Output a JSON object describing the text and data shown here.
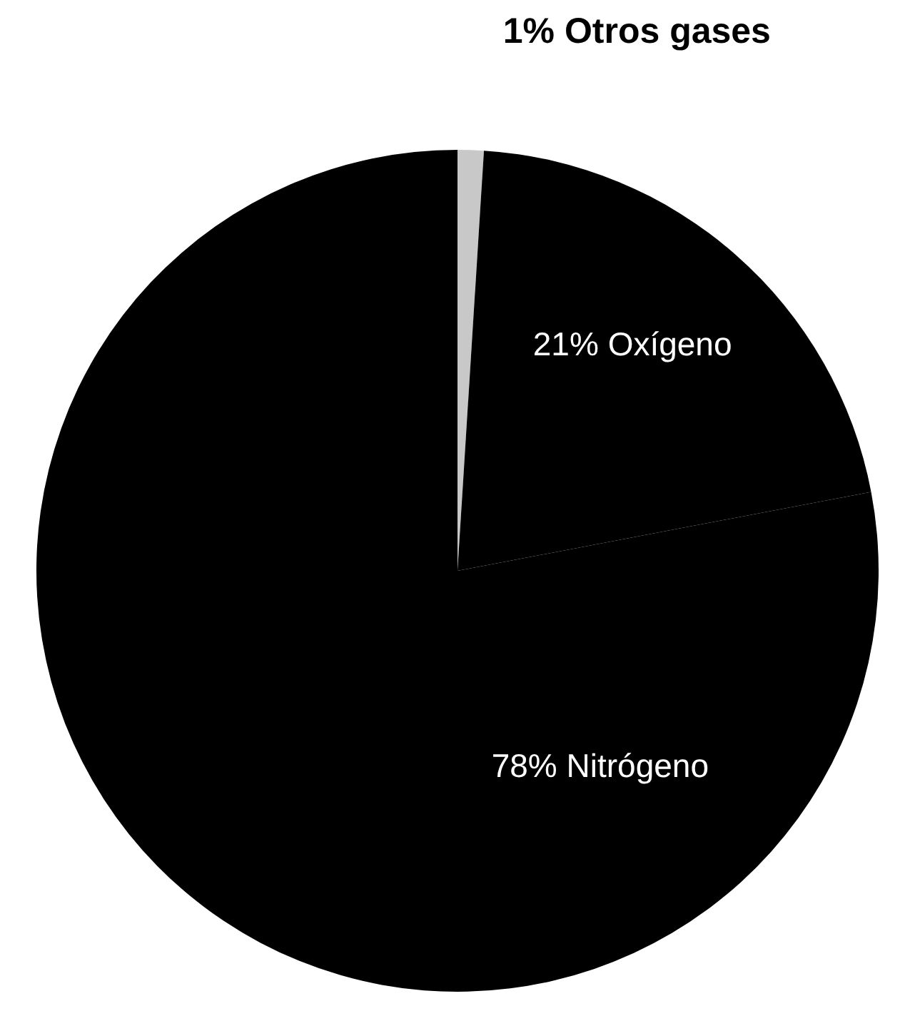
{
  "chart_data": {
    "type": "pie",
    "categories": [
      "Otros gases",
      "Oxígeno",
      "Nitrógeno"
    ],
    "values": [
      1,
      21,
      78
    ],
    "colors": [
      "#c8c8c8",
      "#000000",
      "#000000"
    ],
    "value_labels": [
      "1%",
      "21%",
      "78%"
    ],
    "legend": false
  }
}
